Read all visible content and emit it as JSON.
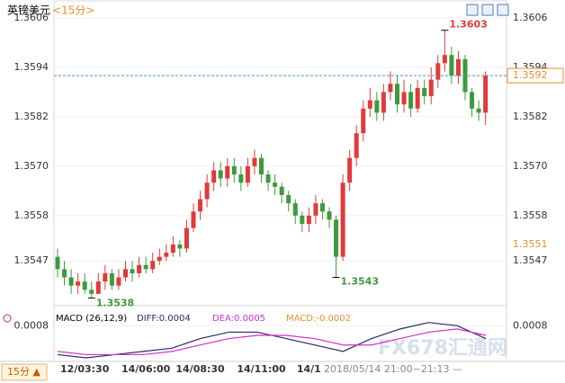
{
  "chart_data": [
    {
      "type": "candlestick",
      "title": "英镑美元",
      "subtitle": "<15分>",
      "categories": [
        null,
        null,
        null,
        null,
        "12/03:30",
        null,
        null,
        null,
        null,
        null,
        null,
        null,
        null,
        "14/06:00",
        null,
        null,
        null,
        null,
        null,
        null,
        null,
        "14/08:30",
        null,
        null,
        null,
        null,
        null,
        null,
        null,
        null,
        "14/11:00",
        null,
        null,
        null,
        null,
        null,
        null,
        "14/1",
        null,
        null,
        null,
        null,
        null,
        null,
        null,
        null,
        null,
        null,
        null,
        null,
        null,
        null,
        null,
        null,
        null,
        null,
        null,
        null,
        null,
        null,
        null,
        null,
        null,
        null
      ],
      "open": [
        1.3548,
        1.3545,
        1.3543,
        1.3541,
        1.3542,
        1.354,
        1.3539,
        1.3542,
        1.3544,
        1.3541,
        1.3543,
        1.3545,
        1.3544,
        1.3546,
        1.3545,
        1.3547,
        1.3548,
        1.3549,
        1.3551,
        1.355,
        1.3555,
        1.3559,
        1.3562,
        1.3566,
        1.3569,
        1.3567,
        1.357,
        1.3568,
        1.3566,
        1.357,
        1.3572,
        1.3568,
        1.3566,
        1.3565,
        1.3563,
        1.3561,
        1.3558,
        1.3556,
        1.3558,
        1.3561,
        1.3559,
        1.3557,
        1.3548,
        1.3566,
        1.3572,
        1.3578,
        1.3584,
        1.3586,
        1.3583,
        1.3588,
        1.359,
        1.3585,
        1.3588,
        1.3584,
        1.3589,
        1.3587,
        1.3591,
        1.3595,
        1.3597,
        1.3592,
        1.3596,
        1.3588,
        1.3584,
        1.3583
      ],
      "high": [
        1.355,
        1.3547,
        1.3545,
        1.3544,
        1.3544,
        1.3542,
        1.3544,
        1.3546,
        1.3545,
        1.3545,
        1.3547,
        1.3547,
        1.3548,
        1.3548,
        1.3549,
        1.355,
        1.3551,
        1.3553,
        1.3552,
        1.3557,
        1.3561,
        1.3564,
        1.3568,
        1.3571,
        1.3571,
        1.3572,
        1.3572,
        1.357,
        1.3572,
        1.3574,
        1.3573,
        1.3569,
        1.3568,
        1.3566,
        1.3564,
        1.3562,
        1.3559,
        1.356,
        1.3563,
        1.3562,
        1.356,
        1.3558,
        1.3568,
        1.3574,
        1.358,
        1.3586,
        1.3589,
        1.3588,
        1.359,
        1.3593,
        1.3592,
        1.3591,
        1.359,
        1.3591,
        1.3591,
        1.3594,
        1.3597,
        1.3603,
        1.3599,
        1.3598,
        1.3597,
        1.3589,
        1.3586,
        1.3593
      ],
      "low": [
        1.3543,
        1.3541,
        1.3539,
        1.3539,
        1.3539,
        1.3538,
        1.3539,
        1.354,
        1.354,
        1.354,
        1.3542,
        1.3542,
        1.3543,
        1.3544,
        1.3544,
        1.3546,
        1.3547,
        1.3548,
        1.3548,
        1.3549,
        1.3554,
        1.3557,
        1.356,
        1.3564,
        1.3565,
        1.3565,
        1.3566,
        1.3564,
        1.3565,
        1.3568,
        1.3566,
        1.3564,
        1.3563,
        1.3561,
        1.3559,
        1.3556,
        1.3554,
        1.3554,
        1.3556,
        1.3557,
        1.3555,
        1.3543,
        1.3547,
        1.3564,
        1.357,
        1.3576,
        1.3582,
        1.3581,
        1.3581,
        1.3586,
        1.3583,
        1.3583,
        1.3582,
        1.3583,
        1.3585,
        1.3585,
        1.3589,
        1.3593,
        1.359,
        1.359,
        1.3586,
        1.3582,
        1.3581,
        1.358
      ],
      "close": [
        1.3545,
        1.3543,
        1.3541,
        1.3542,
        1.354,
        1.3539,
        1.3542,
        1.3544,
        1.3541,
        1.3543,
        1.3545,
        1.3544,
        1.3546,
        1.3545,
        1.3547,
        1.3548,
        1.3549,
        1.3551,
        1.355,
        1.3555,
        1.3559,
        1.3562,
        1.3566,
        1.3569,
        1.3567,
        1.357,
        1.3568,
        1.3566,
        1.357,
        1.3572,
        1.3568,
        1.3566,
        1.3565,
        1.3563,
        1.3561,
        1.3558,
        1.3556,
        1.3558,
        1.3561,
        1.3559,
        1.3557,
        1.3548,
        1.3566,
        1.3572,
        1.3578,
        1.3584,
        1.3586,
        1.3583,
        1.3588,
        1.359,
        1.3585,
        1.3588,
        1.3584,
        1.3589,
        1.3587,
        1.3591,
        1.3595,
        1.3597,
        1.3592,
        1.3596,
        1.3588,
        1.3584,
        1.3583,
        1.3592
      ],
      "up_color": "#e03a3a",
      "down_color": "#3d9a3d",
      "ylim": [
        1.3537,
        1.3608
      ],
      "yticks": [
        1.3606,
        1.3594,
        1.3582,
        {
          "value": 1.357,
          "label": "1.3570"
        },
        1.3558,
        1.3547
      ],
      "reference_price": 1.3551,
      "period_button": "15分 ▲",
      "cursor_time": "2018/05/14 21:00~21:13 —",
      "watermark": "FX678汇通网"
    },
    {
      "type": "line",
      "title": "MACD (26,12,9)",
      "categories": [
        null,
        null,
        null,
        null,
        null,
        null,
        null,
        null,
        null,
        null,
        null,
        null,
        null,
        null,
        null,
        null
      ],
      "series": [
        {
          "name": "DIFF:0.0004",
          "color": "#2b2b66",
          "values": [
            -0.0001,
            -0.0002,
            -0.0001,
            0,
            0.0001,
            0.0004,
            0.0006,
            0.0006,
            0.0004,
            0.0002,
            0,
            0.0004,
            0.0007,
            0.0009,
            0.0008,
            0.0004
          ]
        },
        {
          "name": "DEA:0.0005",
          "color": "#cc33cc",
          "values": [
            0,
            -0.0001,
            -0.0001,
            -0.0001,
            0,
            0.0002,
            0.0004,
            0.0005,
            0.0005,
            0.0004,
            0.0002,
            0.0002,
            0.0004,
            0.0006,
            0.0007,
            0.0005
          ]
        }
      ],
      "macd_label": "MACD:-0.0002",
      "macd_color": "#e8902a",
      "ylim": [
        -0.0002,
        0.0012
      ],
      "yticks": [
        0.0008
      ]
    }
  ]
}
